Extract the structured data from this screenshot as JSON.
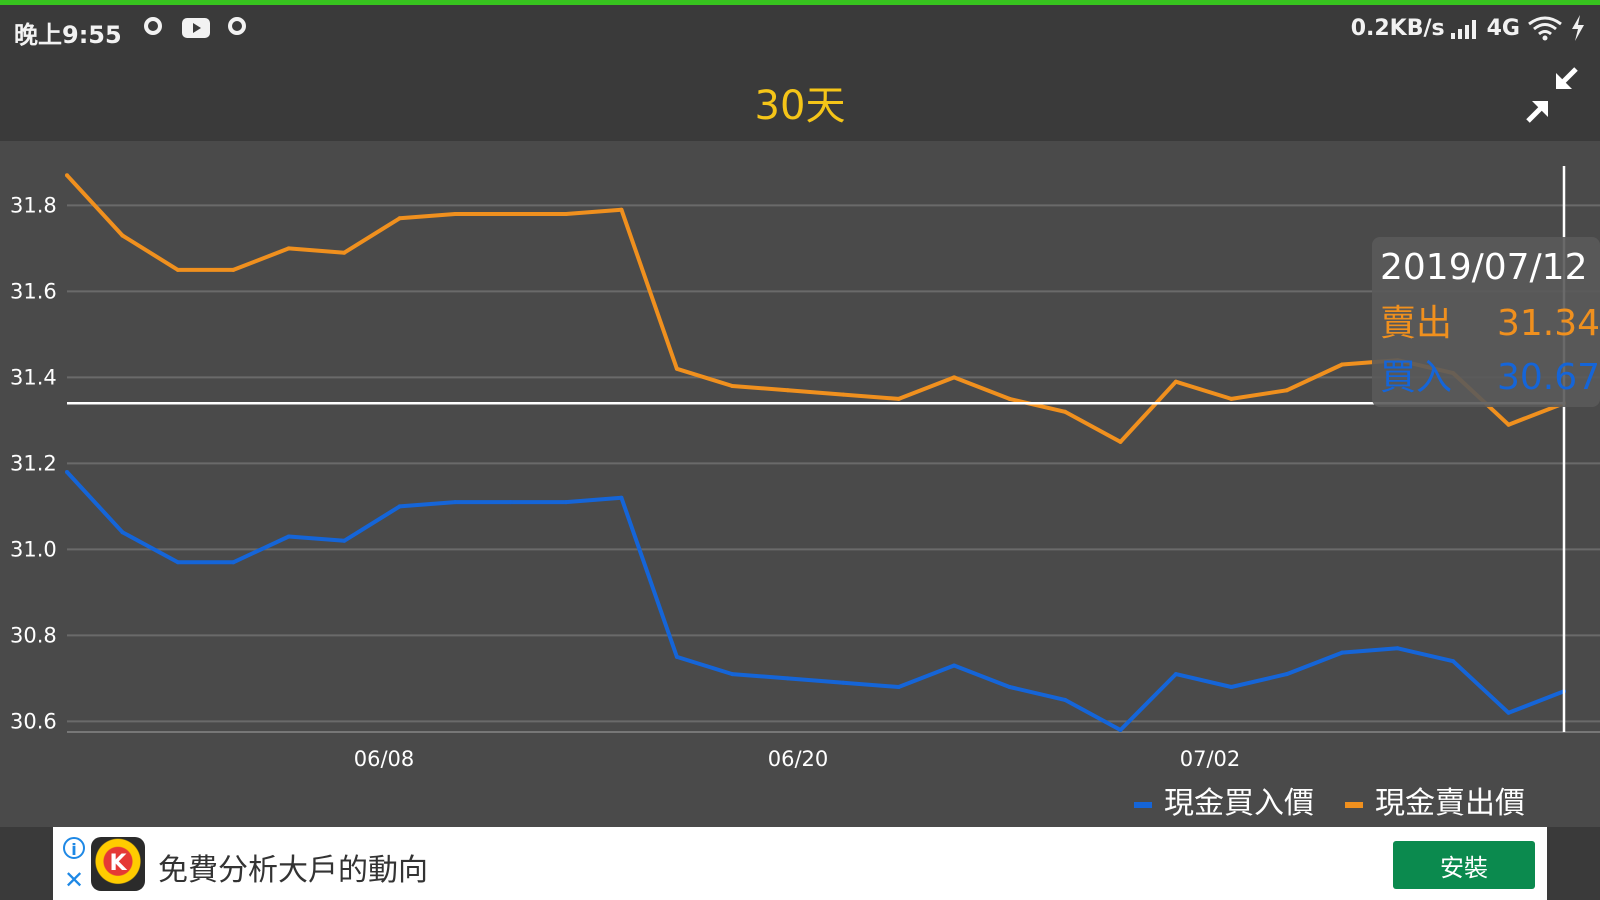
{
  "status_bar": {
    "time": "晚上9:55",
    "net_speed": "0.2KB/s",
    "network_type": "4G",
    "icons": [
      "circle-icon",
      "youtube-icon",
      "circle-icon",
      "signal-icon",
      "wifi-icon",
      "charging-icon"
    ]
  },
  "header": {
    "title": "30天",
    "expand_icon": "expand-arrows-icon",
    "title_color": "#f5c518"
  },
  "tooltip": {
    "date": "2019/07/12",
    "sell_label": "賣出",
    "sell_value": "31.34",
    "buy_label": "買入",
    "buy_value": "30.67"
  },
  "legend": {
    "buy_label": "現金買入價",
    "sell_label": "現金賣出價"
  },
  "colors": {
    "buy": "#1565d8",
    "sell": "#f0901e",
    "background": "#4a4a4a"
  },
  "chart_data": {
    "type": "line",
    "ylim": [
      30.58,
      31.88
    ],
    "y_ticks": [
      "31.8",
      "31.6",
      "31.4",
      "31.2",
      "31.0",
      "30.8",
      "30.6"
    ],
    "x_ticks": [
      "06/08",
      "06/20",
      "07/02"
    ],
    "crosshair_value": 31.34,
    "series": [
      {
        "name": "現金買入價",
        "color": "#1565d8",
        "values": [
          31.18,
          31.04,
          30.97,
          30.97,
          31.03,
          31.02,
          31.1,
          31.11,
          31.11,
          31.11,
          31.12,
          30.75,
          30.71,
          30.7,
          30.69,
          30.68,
          30.73,
          30.68,
          30.65,
          30.58,
          30.71,
          30.68,
          30.71,
          30.76,
          30.77,
          30.74,
          30.62,
          30.67
        ]
      },
      {
        "name": "現金賣出價",
        "color": "#f0901e",
        "values": [
          31.87,
          31.73,
          31.65,
          31.65,
          31.7,
          31.69,
          31.77,
          31.78,
          31.78,
          31.78,
          31.79,
          31.42,
          31.38,
          31.37,
          31.36,
          31.35,
          31.4,
          31.35,
          31.32,
          31.25,
          31.39,
          31.35,
          31.37,
          31.43,
          31.44,
          31.41,
          31.29,
          31.34
        ]
      }
    ]
  },
  "ad": {
    "text": "免費分析大戶的動向",
    "button_label": "安裝",
    "logo_letter": "K"
  }
}
